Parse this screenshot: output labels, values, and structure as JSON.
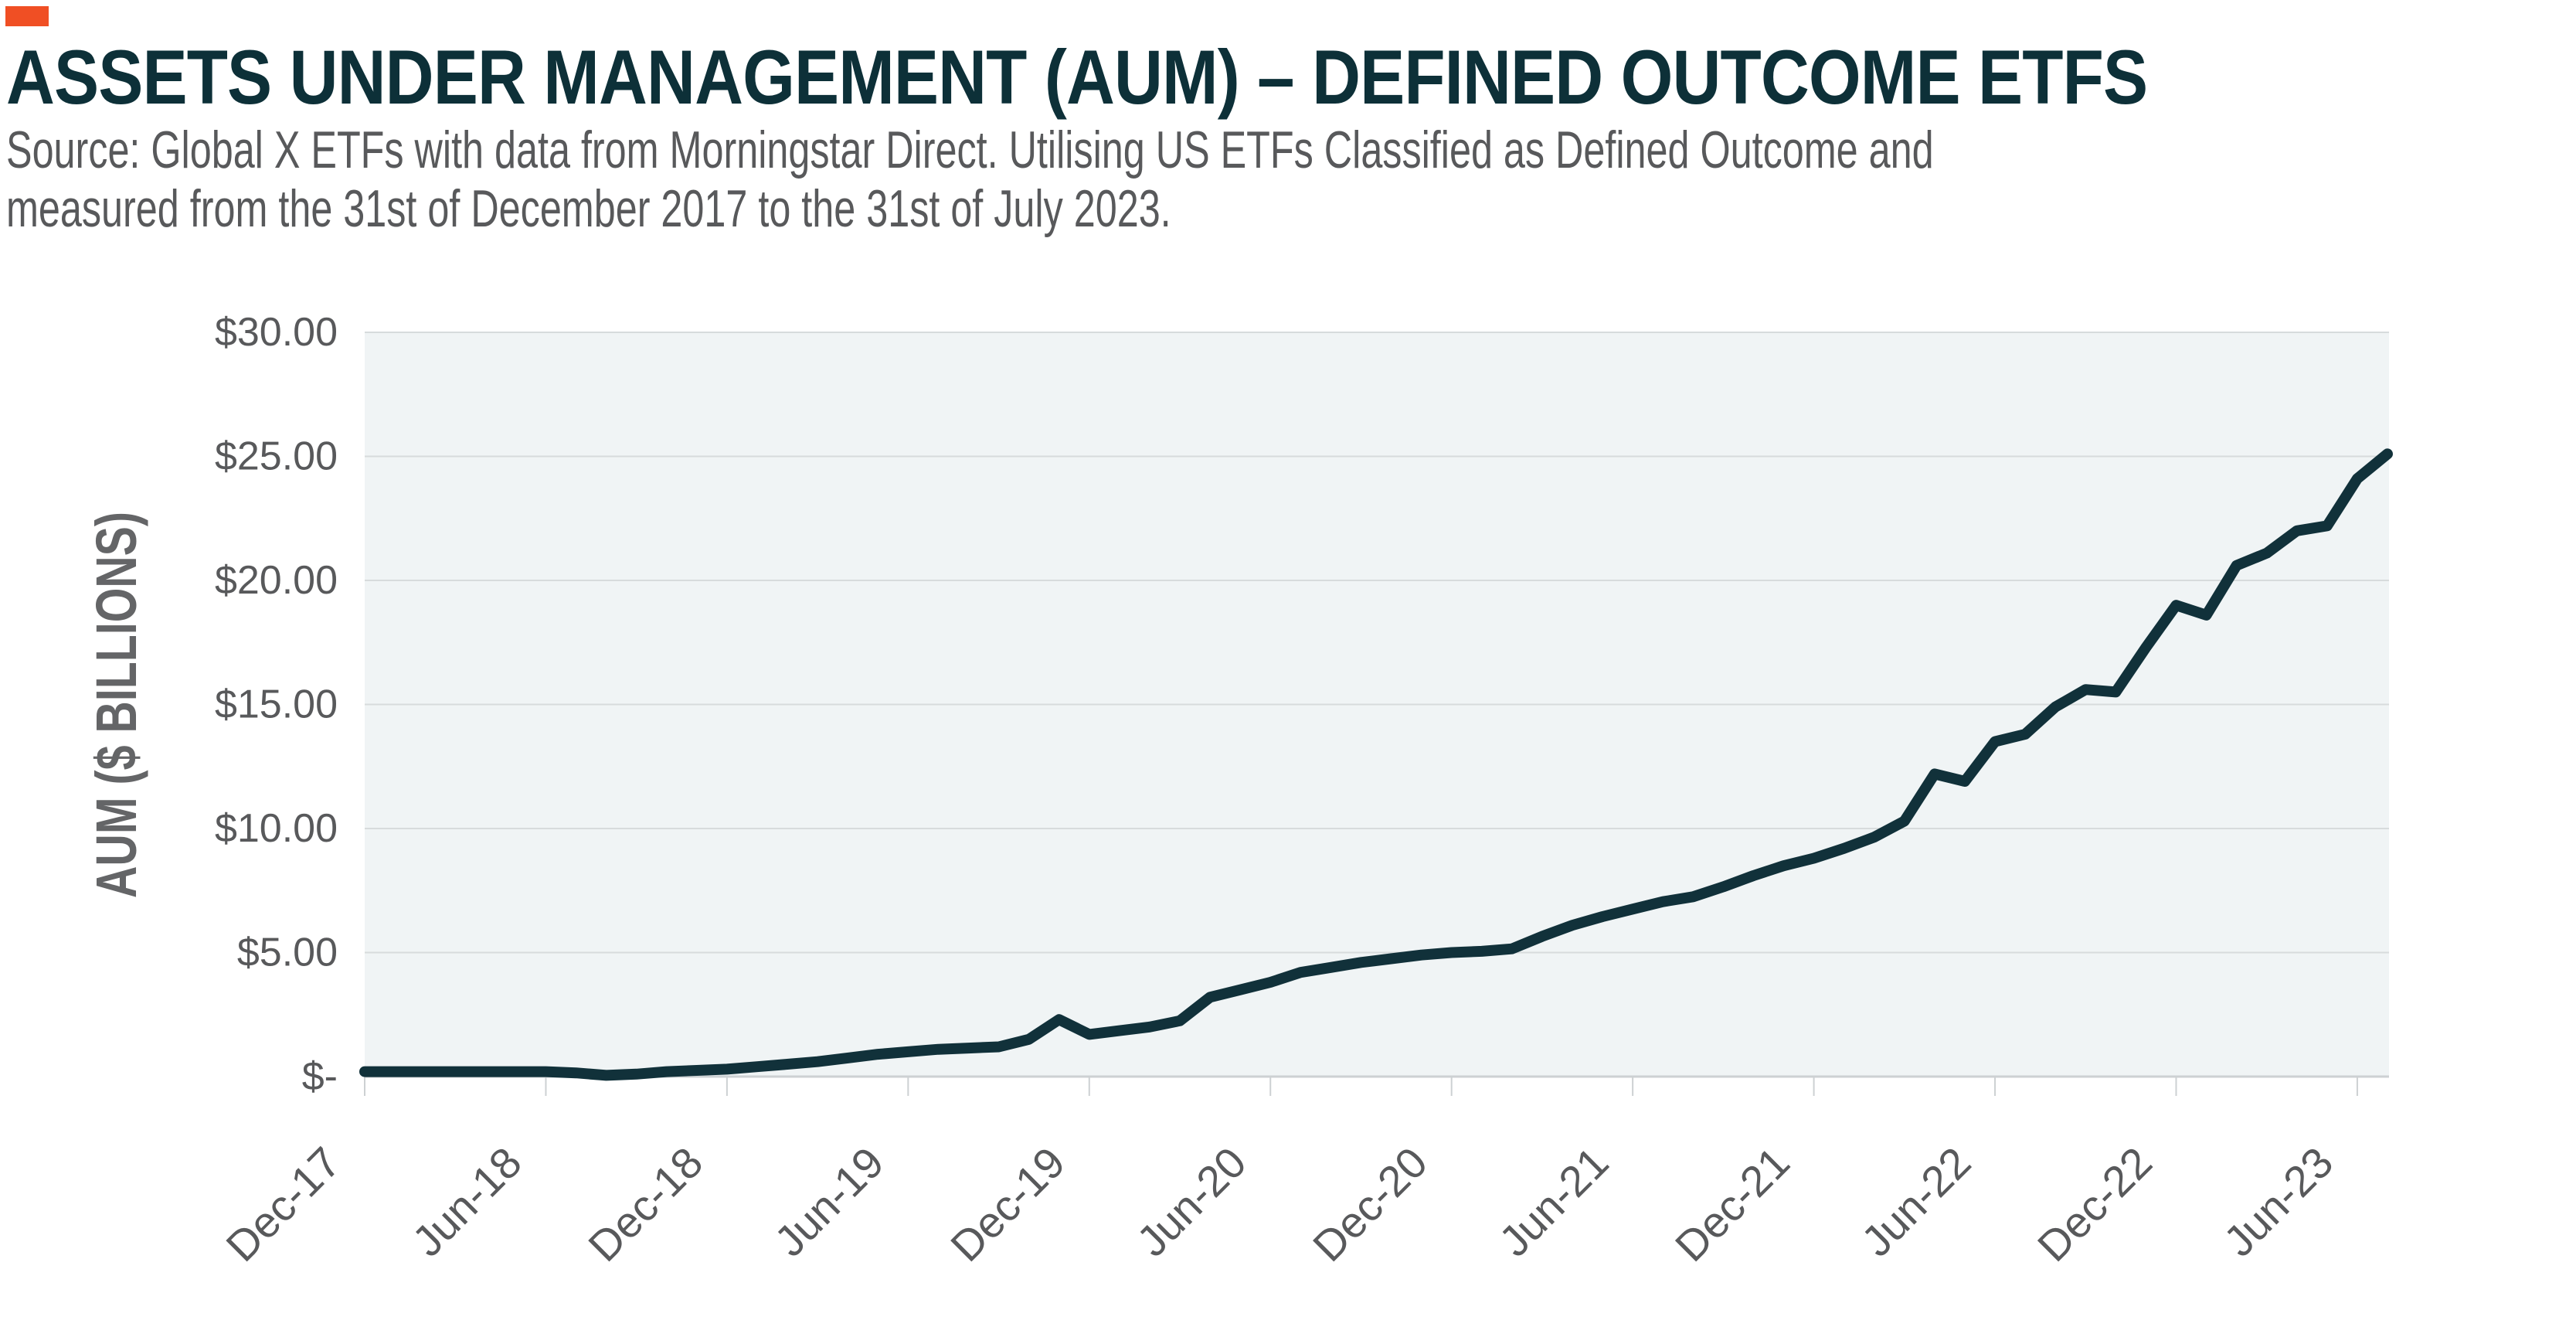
{
  "header": {
    "accent_color": "#F04F24",
    "title": "ASSETS UNDER MANAGEMENT (AUM) – DEFINED OUTCOME ETFS",
    "source_line1": "Source: Global X ETFs with data from Morningstar Direct. Utilising US ETFs Classified as Defined Outcome and",
    "source_line2": "measured from the 31st of December 2017 to the 31st of July 2023."
  },
  "chart_data": {
    "type": "line",
    "title": "ASSETS UNDER MANAGEMENT (AUM) – DEFINED OUTCOME ETFS",
    "xlabel": "",
    "ylabel": "AUM ($ BILLIONS)",
    "ylim": [
      0,
      30
    ],
    "grid": "horizontal",
    "legend": "none",
    "x": [
      "Dec-17",
      "Jan-18",
      "Feb-18",
      "Mar-18",
      "Apr-18",
      "May-18",
      "Jun-18",
      "Jul-18",
      "Aug-18",
      "Sep-18",
      "Oct-18",
      "Nov-18",
      "Dec-18",
      "Jan-19",
      "Feb-19",
      "Mar-19",
      "Apr-19",
      "May-19",
      "Jun-19",
      "Jul-19",
      "Aug-19",
      "Sep-19",
      "Oct-19",
      "Nov-19",
      "Dec-19",
      "Jan-20",
      "Feb-20",
      "Mar-20",
      "Apr-20",
      "May-20",
      "Jun-20",
      "Jul-20",
      "Aug-20",
      "Sep-20",
      "Oct-20",
      "Nov-20",
      "Dec-20",
      "Jan-21",
      "Feb-21",
      "Mar-21",
      "Apr-21",
      "May-21",
      "Jun-21",
      "Jul-21",
      "Aug-21",
      "Sep-21",
      "Oct-21",
      "Nov-21",
      "Dec-21",
      "Jan-22",
      "Feb-22",
      "Mar-22",
      "Apr-22",
      "May-22",
      "Jun-22",
      "Jul-22",
      "Aug-22",
      "Sep-22",
      "Oct-22",
      "Nov-22",
      "Dec-22",
      "Jan-23",
      "Feb-23",
      "Mar-23",
      "Apr-23",
      "May-23",
      "Jun-23",
      "Jul-23"
    ],
    "series": [
      {
        "name": "Defined Outcome ETFs AUM ($B)",
        "values": [
          0.2,
          0.2,
          0.2,
          0.2,
          0.2,
          0.2,
          0.2,
          0.15,
          0.05,
          0.1,
          0.2,
          0.25,
          0.3,
          0.4,
          0.5,
          0.6,
          0.75,
          0.9,
          1.0,
          1.1,
          1.15,
          1.2,
          1.5,
          2.3,
          1.7,
          1.85,
          2.0,
          2.25,
          3.2,
          3.5,
          3.8,
          4.2,
          4.4,
          4.6,
          4.75,
          4.9,
          5.0,
          5.05,
          5.15,
          5.65,
          6.1,
          6.45,
          6.75,
          7.05,
          7.25,
          7.65,
          8.1,
          8.5,
          8.8,
          9.2,
          9.65,
          10.3,
          12.2,
          11.9,
          13.5,
          13.8,
          14.9,
          15.6,
          15.5,
          17.3,
          19.0,
          18.6,
          20.6,
          21.1,
          22.0,
          22.2,
          24.1,
          25.1
        ]
      }
    ],
    "y_ticks": [
      0,
      5,
      10,
      15,
      20,
      25,
      30
    ],
    "y_tick_labels": [
      "$-",
      "$5.00",
      "$10.00",
      "$15.00",
      "$20.00",
      "$25.00",
      "$30.00"
    ],
    "x_tick_labels": [
      "Dec-17",
      "Jun-18",
      "Dec-18",
      "Jun-19",
      "Dec-19",
      "Jun-20",
      "Dec-20",
      "Jun-21",
      "Dec-21",
      "Jun-22",
      "Dec-22",
      "Jun-23"
    ],
    "x_tick_every": 6,
    "colors": {
      "line": "#11313A",
      "plot_bg": "#F0F4F5",
      "grid": "#D7DBDC",
      "axis": "#CDD1D3",
      "tick_text": "#58595B",
      "axis_title_text": "#646567"
    }
  }
}
